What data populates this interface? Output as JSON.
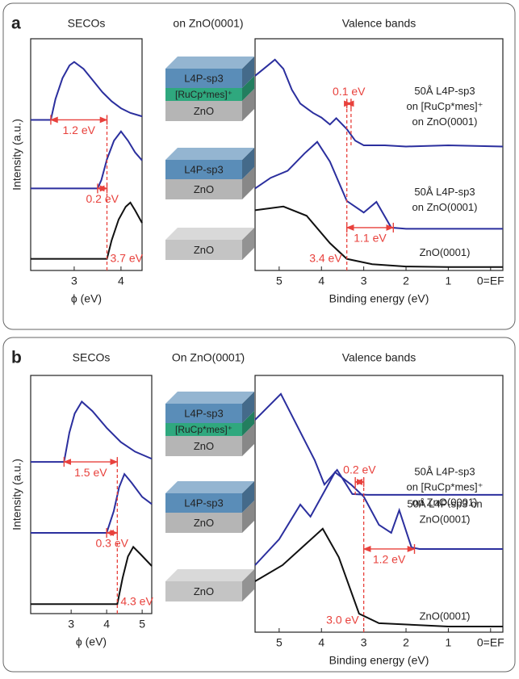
{
  "panels": [
    {
      "label": "a",
      "heading": "on ZnO(0001)",
      "stacks": [
        {
          "layers": [
            {
              "name": "L4P-sp3",
              "color": "#5a8db8"
            },
            {
              "name": "[RuCp*mes]⁺",
              "color": "#2fa87e"
            },
            {
              "name": "ZnO",
              "color": "#b5b5b5"
            }
          ]
        },
        {
          "layers": [
            {
              "name": "L4P-sp3",
              "color": "#5a8db8"
            },
            {
              "name": "ZnO",
              "color": "#b5b5b5"
            }
          ]
        },
        {
          "layers": [
            {
              "name": "ZnO",
              "color": "#c4c4c4"
            }
          ]
        }
      ]
    },
    {
      "label": "b",
      "heading": "On ZnO(0001̄)",
      "stacks": [
        {
          "layers": [
            {
              "name": "L4P-sp3",
              "color": "#5a8db8"
            },
            {
              "name": "[RuCp*mes]⁺",
              "color": "#2fa87e"
            },
            {
              "name": "ZnO",
              "color": "#b5b5b5"
            }
          ]
        },
        {
          "layers": [
            {
              "name": "L4P-sp3",
              "color": "#5a8db8"
            },
            {
              "name": "ZnO",
              "color": "#b5b5b5"
            }
          ]
        },
        {
          "layers": [
            {
              "name": "ZnO",
              "color": "#c4c4c4"
            }
          ]
        }
      ]
    }
  ],
  "chart_data": [
    {
      "type": "line",
      "title": "SECOs",
      "xlabel": "ϕ (eV)",
      "ylabel": "Intensity (a.u.)",
      "xlim": [
        2.07,
        4.45
      ],
      "ylim": [
        0,
        10
      ],
      "xticks": [
        3,
        4
      ],
      "series": [
        {
          "color": "#2b2f9e",
          "x": [
            2.07,
            2.5,
            2.6,
            2.75,
            2.9,
            3.0,
            3.2,
            3.4,
            3.6,
            3.8,
            4.0,
            4.2,
            4.45
          ],
          "values": [
            6.5,
            6.5,
            7.4,
            8.3,
            8.85,
            9.0,
            8.7,
            8.2,
            7.7,
            7.3,
            7.0,
            6.8,
            6.65
          ]
        },
        {
          "color": "#2b2f9e",
          "x": [
            2.07,
            3.5,
            3.58,
            3.7,
            3.85,
            4.0,
            4.15,
            4.3,
            4.45
          ],
          "values": [
            3.54,
            3.54,
            3.9,
            4.8,
            5.6,
            6.0,
            5.6,
            5.1,
            4.75
          ]
        },
        {
          "color": "#111111",
          "x": [
            2.07,
            3.7,
            3.8,
            3.95,
            4.1,
            4.2,
            4.3,
            4.45
          ],
          "values": [
            0.5,
            0.5,
            1.3,
            2.2,
            2.75,
            2.93,
            2.6,
            2.05
          ]
        }
      ],
      "dashed_lines": [
        {
          "x": 3.7,
          "y": [
            0,
            6.7
          ],
          "label": "3.7 eV"
        }
      ],
      "arrows": [
        {
          "label": "1.2 eV",
          "x": [
            2.5,
            3.7
          ],
          "y": 6.5
        },
        {
          "label": "0.2 eV",
          "x": [
            3.5,
            3.7
          ],
          "y": 3.54
        }
      ]
    },
    {
      "type": "line",
      "title": "Valence bands",
      "xlabel": "Binding energy (eV)",
      "xlim": [
        5.57,
        -0.29
      ],
      "ylim": [
        0,
        10
      ],
      "xticks": [
        5,
        4,
        3,
        2,
        1,
        {
          "value": 0,
          "label": "0=EF"
        }
      ],
      "series": [
        {
          "color": "#2b2f9e",
          "x": [
            5.57,
            5.3,
            5.1,
            4.9,
            4.7,
            4.5,
            4.2,
            4.0,
            3.8,
            3.65,
            3.4,
            3.2,
            3.0,
            2.5,
            2.0,
            1.0,
            -0.29
          ],
          "values": [
            8.4,
            8.8,
            9.1,
            8.7,
            7.8,
            7.2,
            6.8,
            6.6,
            6.3,
            6.57,
            6.1,
            5.6,
            5.4,
            5.4,
            5.35,
            5.4,
            5.35
          ],
          "label_lines": [
            "50Å L4P-sp3",
            "on [RuCp*mes]⁺",
            "on ZnO(0001)"
          ]
        },
        {
          "color": "#2b2f9e",
          "x": [
            5.57,
            5.2,
            4.8,
            4.4,
            4.1,
            3.8,
            3.4,
            3.0,
            2.7,
            2.35,
            2.0,
            1.0,
            -0.29
          ],
          "values": [
            3.54,
            4.0,
            4.3,
            5.05,
            5.55,
            4.7,
            3.0,
            2.5,
            2.96,
            1.85,
            1.8,
            1.8,
            1.8
          ],
          "label_lines": [
            "50Å L4P-sp3",
            "on ZnO(0001)"
          ]
        },
        {
          "color": "#111111",
          "x": [
            5.57,
            4.9,
            4.35,
            3.8,
            3.4,
            2.8,
            2.0,
            1.0,
            -0.29
          ],
          "values": [
            2.6,
            2.76,
            2.36,
            1.18,
            0.5,
            0.27,
            0.17,
            0.15,
            0.15
          ],
          "label_lines": [
            "ZnO(0001)"
          ]
        }
      ],
      "dashed_lines": [
        {
          "x": 3.4,
          "y": [
            0,
            7.4
          ],
          "label": "3.4 eV"
        },
        {
          "x": 3.3,
          "y": [
            5.4,
            7.4
          ]
        }
      ],
      "arrows": [
        {
          "label": "0.1 eV",
          "x": [
            3.4,
            3.3
          ],
          "y": 7.2
        },
        {
          "label": "1.1 eV",
          "x": [
            3.4,
            2.3
          ],
          "y": 1.85
        }
      ]
    },
    {
      "type": "line",
      "title": "SECOs",
      "xlabel": "ϕ (eV)",
      "ylabel": "Intensity (a.u.)",
      "xlim": [
        1.86,
        5.27
      ],
      "ylim": [
        0,
        10
      ],
      "xticks": [
        3,
        4,
        5
      ],
      "series": [
        {
          "color": "#2b2f9e",
          "x": [
            1.86,
            2.8,
            2.95,
            3.1,
            3.3,
            3.6,
            4.0,
            4.4,
            4.8,
            5.27
          ],
          "values": [
            6.37,
            6.37,
            7.6,
            8.4,
            8.9,
            8.5,
            7.8,
            7.2,
            6.8,
            6.5
          ]
        },
        {
          "color": "#2b2f9e",
          "x": [
            1.86,
            4.0,
            4.2,
            4.35,
            4.5,
            4.7,
            5.0,
            5.27
          ],
          "values": [
            3.39,
            3.39,
            4.3,
            5.3,
            5.86,
            5.5,
            4.9,
            4.6
          ]
        },
        {
          "color": "#111111",
          "x": [
            1.86,
            4.3,
            4.45,
            4.6,
            4.75,
            4.95,
            5.27
          ],
          "values": [
            0.4,
            0.4,
            1.5,
            2.4,
            2.8,
            2.5,
            2.0
          ]
        }
      ],
      "dashed_lines": [
        {
          "x": 4.3,
          "y": [
            0,
            6.5
          ],
          "label": "4.3 eV"
        }
      ],
      "arrows": [
        {
          "label": "1.5 eV",
          "x": [
            2.8,
            4.3
          ],
          "y": 6.37
        },
        {
          "label": "0.3 eV",
          "x": [
            4.0,
            4.3
          ],
          "y": 3.39
        }
      ]
    },
    {
      "type": "line",
      "title": "Valence bands",
      "xlabel": "Binding energy (eV)",
      "xlim": [
        5.57,
        -0.29
      ],
      "ylim": [
        0,
        10
      ],
      "xticks": [
        5,
        4,
        3,
        2,
        1,
        {
          "value": 0,
          "label": "0=EF"
        }
      ],
      "series": [
        {
          "color": "#2b2f9e",
          "x": [
            5.57,
            4.96,
            4.16,
            3.93,
            3.63,
            3.27,
            2.92,
            2.0,
            1.0,
            -0.29
          ],
          "values": [
            8.27,
            9.28,
            6.7,
            5.75,
            6.32,
            5.38,
            5.35,
            5.35,
            5.35,
            5.35
          ],
          "label_lines": [
            "50Å L4P-sp3",
            "on [RuCp*mes]⁺",
            "on ZnO(0001̄)"
          ]
        },
        {
          "color": "#2b2f9e",
          "x": [
            5.57,
            5.0,
            4.5,
            4.26,
            3.68,
            3.3,
            3.0,
            2.64,
            2.35,
            2.16,
            1.87,
            1.68,
            1.0,
            -0.29
          ],
          "values": [
            2.61,
            3.62,
            4.97,
            4.5,
            6.23,
            5.75,
            5.28,
            4.18,
            3.87,
            4.75,
            3.3,
            3.24,
            3.24,
            3.24
          ],
          "label_lines": [
            "50Å L4P-sp3 on",
            "ZnO(0001̄)"
          ]
        },
        {
          "color": "#111111",
          "x": [
            5.57,
            4.92,
            3.97,
            3.59,
            3.11,
            2.64,
            1.0,
            -0.29
          ],
          "values": [
            1.98,
            2.61,
            4.03,
            2.92,
            0.72,
            0.35,
            0.22,
            0.22
          ],
          "label_lines": [
            "ZnO(0001̄)"
          ]
        }
      ],
      "dashed_lines": [
        {
          "x": 3.0,
          "y": [
            0,
            6.0
          ],
          "label": "3.0 eV"
        },
        {
          "x": 3.2,
          "y": [
            5.35,
            6.0
          ]
        }
      ],
      "arrows": [
        {
          "label": "0.2 eV",
          "x": [
            3.2,
            3.0
          ],
          "y": 5.85
        },
        {
          "label": "1.2 eV",
          "x": [
            3.0,
            1.8
          ],
          "y": 3.24
        }
      ]
    }
  ]
}
